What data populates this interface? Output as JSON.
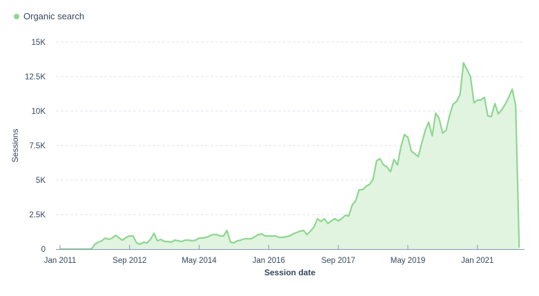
{
  "legend": {
    "items": [
      {
        "label": "Organic search",
        "color": "#8fd694"
      }
    ]
  },
  "colors": {
    "line": "#8cd68f",
    "fill": "#e1f4e0",
    "grid": "#dfe3eb",
    "axis": "#7c98b6",
    "text": "#33475b"
  },
  "chart_data": {
    "type": "area",
    "title": "",
    "xlabel": "Session date",
    "ylabel": "Sessions",
    "ylim": [
      0,
      15000
    ],
    "yticks": [
      0,
      2500,
      5000,
      7500,
      10000,
      12500,
      15000
    ],
    "ytick_labels": [
      "0",
      "2.5K",
      "5K",
      "7.5K",
      "10K",
      "12.5K",
      "15K"
    ],
    "xtick_labels": [
      "Jan 2011",
      "Sep 2012",
      "May 2014",
      "Jan 2016",
      "Sep 2017",
      "May 2019",
      "Jan 2021"
    ],
    "xtick_month_index": [
      0,
      20,
      40,
      60,
      80,
      100,
      120
    ],
    "grid": true,
    "legend_position": "top-left",
    "x_start": "Jan 2011",
    "x_step": "month",
    "series": [
      {
        "name": "Organic search",
        "values": [
          0,
          0,
          0,
          0,
          0,
          0,
          0,
          0,
          0,
          0,
          350,
          500,
          600,
          800,
          700,
          800,
          1000,
          800,
          650,
          850,
          950,
          950,
          450,
          350,
          500,
          450,
          700,
          1150,
          600,
          700,
          550,
          550,
          500,
          650,
          600,
          550,
          650,
          650,
          600,
          650,
          800,
          800,
          850,
          950,
          1050,
          1050,
          950,
          950,
          1350,
          500,
          450,
          600,
          650,
          750,
          750,
          750,
          900,
          1050,
          1100,
          950,
          950,
          950,
          950,
          850,
          850,
          900,
          950,
          1100,
          1200,
          1300,
          1350,
          1050,
          1300,
          1600,
          2200,
          2000,
          2200,
          1850,
          2050,
          2200,
          2050,
          2200,
          2450,
          2400,
          3200,
          3500,
          4300,
          4300,
          4550,
          4700,
          5050,
          6400,
          6550,
          6100,
          5950,
          5600,
          6500,
          6100,
          7400,
          8300,
          8100,
          7100,
          6900,
          6700,
          7700,
          8600,
          9200,
          8200,
          9850,
          9450,
          8400,
          8600,
          9700,
          10500,
          10700,
          11200,
          13500,
          13000,
          12500,
          10600,
          10800,
          10800,
          11000,
          9650,
          9600,
          10550,
          9800,
          10100,
          10500,
          11000,
          11600,
          10400,
          100
        ]
      }
    ]
  }
}
